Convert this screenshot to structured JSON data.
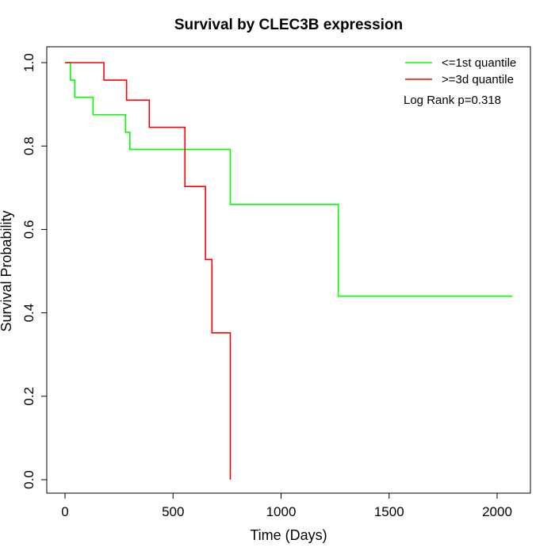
{
  "chart_data": {
    "type": "line",
    "title": "Survival by CLEC3B expression",
    "xlabel": "Time (Days)",
    "ylabel": "Survival Probability",
    "xlim": [
      0,
      2070
    ],
    "ylim": [
      0,
      1
    ],
    "x_ticks": [
      0,
      500,
      1000,
      1500,
      2000
    ],
    "x_tick_labels": [
      "0",
      "500",
      "1000",
      "1500",
      "2000"
    ],
    "y_ticks": [
      0,
      0.2,
      0.4,
      0.6,
      0.8,
      1.0
    ],
    "y_tick_labels": [
      "0.0",
      "0.2",
      "0.4",
      "0.6",
      "0.8",
      "1.0"
    ],
    "grid": false,
    "legend_position": "top-right",
    "annotation": "Log Rank p=0.318",
    "series": [
      {
        "name": "<=1st quantile",
        "color": "#00ff00",
        "step": true,
        "x": [
          0,
          25,
          45,
          130,
          280,
          300,
          765,
          1265,
          2070
        ],
        "y": [
          1.0,
          0.958,
          0.917,
          0.875,
          0.833,
          0.792,
          0.66,
          0.44,
          0.44
        ]
      },
      {
        "name": ">=3d quantile",
        "color": "#ff0000",
        "step": true,
        "x": [
          0,
          180,
          285,
          390,
          555,
          650,
          680,
          765
        ],
        "y": [
          1.0,
          0.958,
          0.91,
          0.845,
          0.703,
          0.528,
          0.352,
          0.0
        ]
      }
    ]
  }
}
